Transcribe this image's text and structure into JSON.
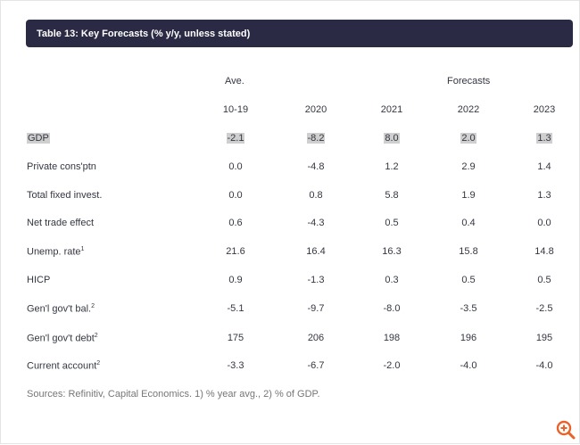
{
  "title": "Table 13: Key Forecasts (% y/y, unless stated)",
  "header_group": {
    "avg_label": "Ave.",
    "forecasts_label": "Forecasts"
  },
  "columns": [
    "10-19",
    "2020",
    "2021",
    "2022",
    "2023"
  ],
  "rows": [
    {
      "label": "GDP",
      "sup": "",
      "values": [
        "-2.1",
        "-8.2",
        "8.0",
        "2.0",
        "1.3"
      ]
    },
    {
      "label": "Private cons'ptn",
      "sup": "",
      "values": [
        "0.0",
        "-4.8",
        "1.2",
        "2.9",
        "1.4"
      ]
    },
    {
      "label": "Total fixed invest.",
      "sup": "",
      "values": [
        "0.0",
        "0.8",
        "5.8",
        "1.9",
        "1.3"
      ]
    },
    {
      "label": "Net trade effect",
      "sup": "",
      "values": [
        "0.6",
        "-4.3",
        "0.5",
        "0.4",
        "0.0"
      ]
    },
    {
      "label": "Unemp. rate",
      "sup": "1",
      "values": [
        "21.6",
        "16.4",
        "16.3",
        "15.8",
        "14.8"
      ]
    },
    {
      "label": "HICP",
      "sup": "",
      "values": [
        "0.9",
        "-1.3",
        "0.3",
        "0.5",
        "0.5"
      ]
    },
    {
      "label": "Gen'l gov't bal.",
      "sup": "2",
      "values": [
        "-5.1",
        "-9.7",
        "-8.0",
        "-3.5",
        "-2.5"
      ]
    },
    {
      "label": "Gen'l gov't debt",
      "sup": "2",
      "values": [
        "175",
        "206",
        "198",
        "196",
        "195"
      ]
    },
    {
      "label": "Current account",
      "sup": "2",
      "values": [
        "-3.3",
        "-6.7",
        "-2.0",
        "-4.0",
        "-4.0"
      ]
    }
  ],
  "source": "Sources: Refinitiv, Capital Economics. 1) % year avg., 2) % of GDP.",
  "colors": {
    "title_bg": "#2a2a44",
    "highlight": "#cfcfcf",
    "zoom_icon": "#e8632a"
  },
  "icons": {
    "zoom": "zoom-in-icon"
  }
}
